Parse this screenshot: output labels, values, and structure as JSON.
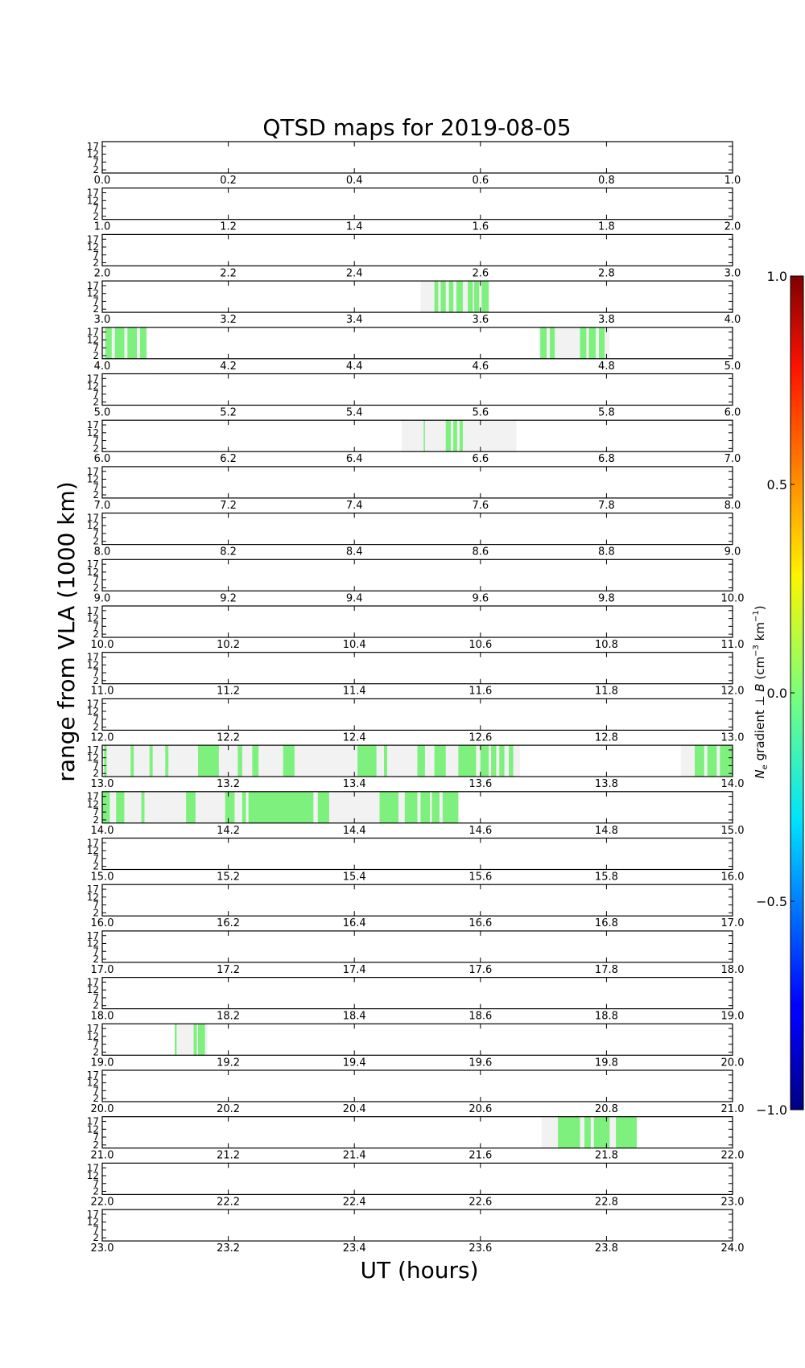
{
  "chart_data": {
    "type": "heatmap",
    "title": "QTSD maps for 2019-08-05",
    "xlabel": "UT (hours)",
    "ylabel": "range from VLA (1000 km)",
    "yticks": [
      "17",
      "12",
      "7",
      "2"
    ],
    "ylim": [
      0,
      20
    ],
    "panel_count": 24,
    "panels": [
      {
        "xlim": [
          0.0,
          1.0
        ],
        "xticks": [
          "0.0",
          "0.2",
          "0.4",
          "0.6",
          "0.8",
          "1.0"
        ],
        "coverage": [],
        "detections": []
      },
      {
        "xlim": [
          1.0,
          2.0
        ],
        "xticks": [
          "1.0",
          "1.2",
          "1.4",
          "1.6",
          "1.8",
          "2.0"
        ],
        "coverage": [],
        "detections": []
      },
      {
        "xlim": [
          2.0,
          3.0
        ],
        "xticks": [
          "2.0",
          "2.2",
          "2.4",
          "2.6",
          "2.8",
          "3.0"
        ],
        "coverage": [],
        "detections": []
      },
      {
        "xlim": [
          3.0,
          4.0
        ],
        "xticks": [
          "3.0",
          "3.2",
          "3.4",
          "3.6",
          "3.8",
          "4.0"
        ],
        "coverage": [
          [
            3.505,
            3.615
          ]
        ],
        "detections": [
          [
            3.527,
            3.533
          ],
          [
            3.537,
            3.545
          ],
          [
            3.55,
            3.557
          ],
          [
            3.562,
            3.572
          ],
          [
            3.58,
            3.588
          ],
          [
            3.59,
            3.598
          ],
          [
            3.602,
            3.613
          ]
        ]
      },
      {
        "xlim": [
          4.0,
          5.0
        ],
        "xticks": [
          "4.0",
          "4.2",
          "4.4",
          "4.6",
          "4.8",
          "5.0"
        ],
        "coverage": [
          [
            4.0,
            4.072
          ],
          [
            4.692,
            4.805
          ]
        ],
        "detections": [
          [
            4.005,
            4.015
          ],
          [
            4.02,
            4.035
          ],
          [
            4.04,
            4.055
          ],
          [
            4.06,
            4.07
          ],
          [
            4.695,
            4.705
          ],
          [
            4.71,
            4.718
          ],
          [
            4.758,
            4.768
          ],
          [
            4.772,
            4.783
          ],
          [
            4.788,
            4.797
          ]
        ]
      },
      {
        "xlim": [
          5.0,
          6.0
        ],
        "xticks": [
          "5.0",
          "5.2",
          "5.4",
          "5.6",
          "5.8",
          "6.0"
        ],
        "coverage": [],
        "detections": []
      },
      {
        "xlim": [
          6.0,
          7.0
        ],
        "xticks": [
          "6.0",
          "6.2",
          "6.4",
          "6.6",
          "6.8",
          "7.0"
        ],
        "coverage": [
          [
            6.475,
            6.657
          ]
        ],
        "detections": [
          [
            6.51,
            6.512
          ],
          [
            6.545,
            6.553
          ],
          [
            6.557,
            6.563
          ],
          [
            6.567,
            6.572
          ]
        ]
      },
      {
        "xlim": [
          7.0,
          8.0
        ],
        "xticks": [
          "7.0",
          "7.2",
          "7.4",
          "7.6",
          "7.8",
          "8.0"
        ],
        "coverage": [],
        "detections": []
      },
      {
        "xlim": [
          8.0,
          9.0
        ],
        "xticks": [
          "8.0",
          "8.2",
          "8.4",
          "8.6",
          "8.8",
          "9.0"
        ],
        "coverage": [],
        "detections": []
      },
      {
        "xlim": [
          9.0,
          10.0
        ],
        "xticks": [
          "9.0",
          "9.2",
          "9.4",
          "9.6",
          "9.8",
          "10.0"
        ],
        "coverage": [],
        "detections": []
      },
      {
        "xlim": [
          10.0,
          11.0
        ],
        "xticks": [
          "10.0",
          "10.2",
          "10.4",
          "10.6",
          "10.8",
          "11.0"
        ],
        "coverage": [],
        "detections": []
      },
      {
        "xlim": [
          11.0,
          12.0
        ],
        "xticks": [
          "11.0",
          "11.2",
          "11.4",
          "11.6",
          "11.8",
          "12.0"
        ],
        "coverage": [],
        "detections": []
      },
      {
        "xlim": [
          12.0,
          13.0
        ],
        "xticks": [
          "12.0",
          "12.2",
          "12.4",
          "12.6",
          "12.8",
          "13.0"
        ],
        "coverage": [],
        "detections": []
      },
      {
        "xlim": [
          13.0,
          14.0
        ],
        "xticks": [
          "13.0",
          "13.2",
          "13.4",
          "13.6",
          "13.8",
          "14.0"
        ],
        "coverage": [
          [
            13.0,
            13.663
          ],
          [
            13.918,
            14.0
          ]
        ],
        "detections": [
          [
            13.003,
            13.007
          ],
          [
            13.045,
            13.05
          ],
          [
            13.075,
            13.08
          ],
          [
            13.1,
            13.105
          ],
          [
            13.152,
            13.185
          ],
          [
            13.215,
            13.222
          ],
          [
            13.238,
            13.248
          ],
          [
            13.287,
            13.305
          ],
          [
            13.405,
            13.435
          ],
          [
            13.447,
            13.452
          ],
          [
            13.5,
            13.512
          ],
          [
            13.527,
            13.545
          ],
          [
            13.565,
            13.593
          ],
          [
            13.6,
            13.613
          ],
          [
            13.617,
            13.625
          ],
          [
            13.63,
            13.638
          ],
          [
            13.645,
            13.652
          ],
          [
            13.94,
            13.955
          ],
          [
            13.96,
            13.975
          ],
          [
            13.98,
            14.0
          ]
        ]
      },
      {
        "xlim": [
          14.0,
          15.0
        ],
        "xticks": [
          "14.0",
          "14.2",
          "14.4",
          "14.6",
          "14.8",
          "15.0"
        ],
        "coverage": [
          [
            14.0,
            14.565
          ]
        ],
        "detections": [
          [
            14.0,
            14.012
          ],
          [
            14.022,
            14.035
          ],
          [
            14.062,
            14.067
          ],
          [
            14.133,
            14.138
          ],
          [
            14.135,
            14.148
          ],
          [
            14.195,
            14.21
          ],
          [
            14.222,
            14.228
          ],
          [
            14.232,
            14.335
          ],
          [
            14.342,
            14.36
          ],
          [
            14.44,
            14.47
          ],
          [
            14.48,
            14.5
          ],
          [
            14.505,
            14.52
          ],
          [
            14.523,
            14.535
          ],
          [
            14.54,
            14.565
          ]
        ]
      },
      {
        "xlim": [
          15.0,
          16.0
        ],
        "xticks": [
          "15.0",
          "15.2",
          "15.4",
          "15.6",
          "15.8",
          "16.0"
        ],
        "coverage": [],
        "detections": []
      },
      {
        "xlim": [
          16.0,
          17.0
        ],
        "xticks": [
          "16.0",
          "16.2",
          "16.4",
          "16.6",
          "16.8",
          "17.0"
        ],
        "coverage": [],
        "detections": []
      },
      {
        "xlim": [
          17.0,
          18.0
        ],
        "xticks": [
          "17.0",
          "17.2",
          "17.4",
          "17.6",
          "17.8",
          "18.0"
        ],
        "coverage": [],
        "detections": []
      },
      {
        "xlim": [
          18.0,
          19.0
        ],
        "xticks": [
          "18.0",
          "18.2",
          "18.4",
          "18.6",
          "18.8",
          "19.0"
        ],
        "coverage": [],
        "detections": []
      },
      {
        "xlim": [
          19.0,
          20.0
        ],
        "xticks": [
          "19.0",
          "19.2",
          "19.4",
          "19.6",
          "19.8",
          "20.0"
        ],
        "coverage": [
          [
            19.115,
            19.167
          ]
        ],
        "detections": [
          [
            19.115,
            19.118
          ],
          [
            19.145,
            19.15
          ],
          [
            19.152,
            19.163
          ]
        ]
      },
      {
        "xlim": [
          20.0,
          21.0
        ],
        "xticks": [
          "20.0",
          "20.2",
          "20.4",
          "20.6",
          "20.8",
          "21.0"
        ],
        "coverage": [],
        "detections": []
      },
      {
        "xlim": [
          21.0,
          22.0
        ],
        "xticks": [
          "21.0",
          "21.2",
          "21.4",
          "21.6",
          "21.8",
          "22.0"
        ],
        "coverage": [
          [
            21.697,
            21.848
          ]
        ],
        "detections": [
          [
            21.723,
            21.758
          ],
          [
            21.765,
            21.775
          ],
          [
            21.78,
            21.805
          ],
          [
            21.815,
            21.848
          ]
        ]
      },
      {
        "xlim": [
          22.0,
          23.0
        ],
        "xticks": [
          "22.0",
          "22.2",
          "22.4",
          "22.6",
          "22.8",
          "23.0"
        ],
        "coverage": [],
        "detections": []
      },
      {
        "xlim": [
          23.0,
          24.0
        ],
        "xticks": [
          "23.0",
          "23.2",
          "23.4",
          "23.6",
          "23.8",
          "24.0"
        ],
        "coverage": [],
        "detections": []
      }
    ],
    "detection_value": 0.0,
    "colorbar": {
      "label": "N_e gradient ⊥ B (cm^-3 km^-1)",
      "label_text": "N",
      "label_sub": "e",
      "label_mid": " gradient ⊥ ",
      "label_b": "B",
      "label_units": " (cm",
      "label_exp1": "−3",
      "label_km": " km",
      "label_exp2": "−1",
      "label_close": ")",
      "range": [
        -1.0,
        1.0
      ],
      "ticks": [
        "1.0",
        "0.5",
        "0.0",
        "−0.5",
        "−1.0"
      ],
      "tick_values": [
        1.0,
        0.5,
        0.0,
        -0.5,
        -1.0
      ],
      "colormap": "jet"
    },
    "colors": {
      "coverage": "#f2f2f2",
      "detection": "#7df07d",
      "axis": "#000000"
    }
  }
}
